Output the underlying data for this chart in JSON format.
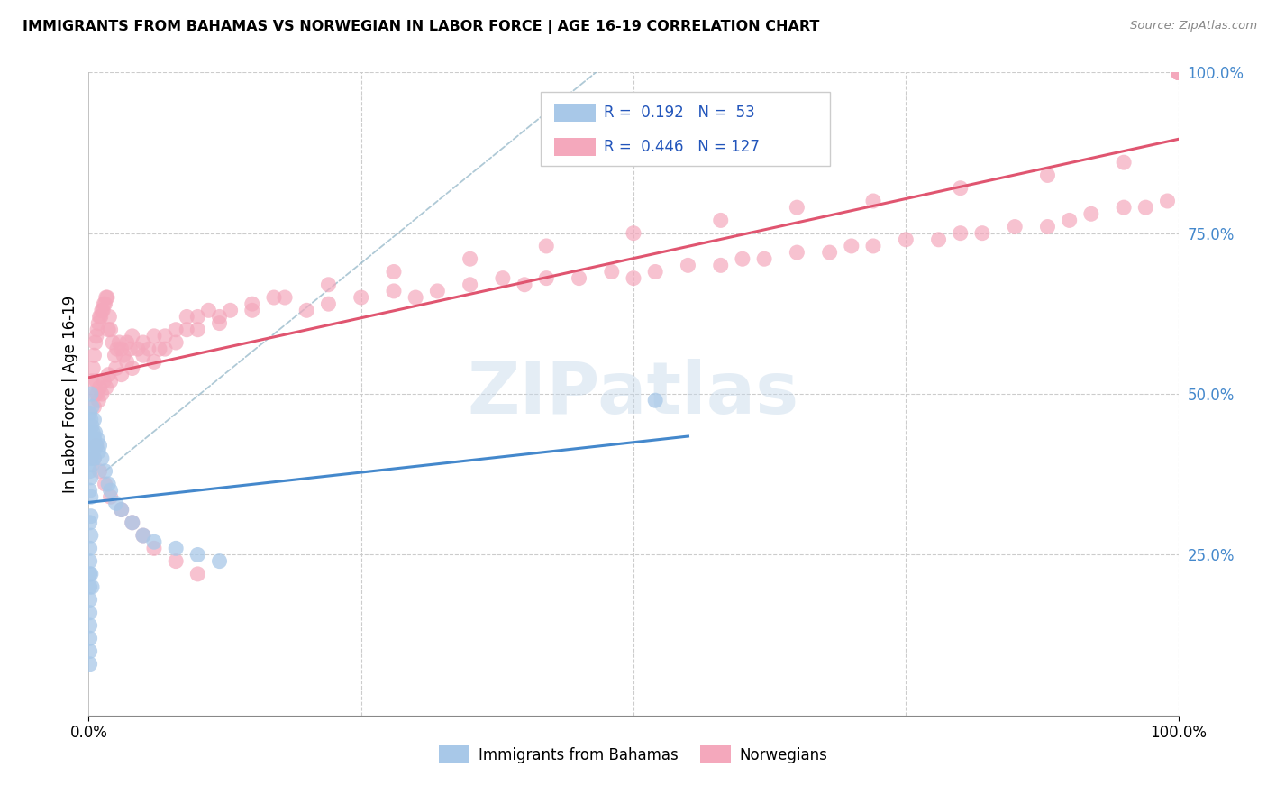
{
  "title": "IMMIGRANTS FROM BAHAMAS VS NORWEGIAN IN LABOR FORCE | AGE 16-19 CORRELATION CHART",
  "source": "Source: ZipAtlas.com",
  "ylabel": "In Labor Force | Age 16-19",
  "xlim": [
    0.0,
    1.0
  ],
  "ylim": [
    0.0,
    1.0
  ],
  "color_bahamas": "#a8c8e8",
  "color_norwegian": "#f4a8bc",
  "color_line_bahamas": "#4488cc",
  "color_line_norwegian": "#e05570",
  "color_dashed": "#aabbcc",
  "color_right_ticks": "#4488cc",
  "grid_color": "#cccccc",
  "bahamas_x": [
    0.001,
    0.001,
    0.001,
    0.001,
    0.001,
    0.002,
    0.002,
    0.002,
    0.002,
    0.002,
    0.002,
    0.002,
    0.002,
    0.003,
    0.003,
    0.003,
    0.003,
    0.004,
    0.004,
    0.005,
    0.005,
    0.005,
    0.006,
    0.007,
    0.008,
    0.009,
    0.01,
    0.012,
    0.015,
    0.018,
    0.02,
    0.025,
    0.03,
    0.04,
    0.05,
    0.06,
    0.08,
    0.1,
    0.12,
    0.001,
    0.001,
    0.001,
    0.001,
    0.001,
    0.001,
    0.001,
    0.001,
    0.001,
    0.001,
    0.001,
    0.002,
    0.003,
    0.52
  ],
  "bahamas_y": [
    0.47,
    0.44,
    0.41,
    0.38,
    0.35,
    0.5,
    0.46,
    0.43,
    0.4,
    0.37,
    0.34,
    0.31,
    0.28,
    0.48,
    0.45,
    0.42,
    0.39,
    0.44,
    0.41,
    0.46,
    0.43,
    0.4,
    0.44,
    0.42,
    0.43,
    0.41,
    0.42,
    0.4,
    0.38,
    0.36,
    0.35,
    0.33,
    0.32,
    0.3,
    0.28,
    0.27,
    0.26,
    0.25,
    0.24,
    0.08,
    0.1,
    0.12,
    0.14,
    0.16,
    0.18,
    0.2,
    0.22,
    0.24,
    0.26,
    0.3,
    0.22,
    0.2,
    0.49
  ],
  "norwegian_x": [
    0.003,
    0.004,
    0.005,
    0.006,
    0.007,
    0.008,
    0.009,
    0.01,
    0.011,
    0.012,
    0.013,
    0.014,
    0.015,
    0.016,
    0.017,
    0.018,
    0.019,
    0.02,
    0.022,
    0.024,
    0.026,
    0.028,
    0.03,
    0.032,
    0.035,
    0.038,
    0.04,
    0.045,
    0.05,
    0.055,
    0.06,
    0.065,
    0.07,
    0.08,
    0.09,
    0.1,
    0.11,
    0.12,
    0.13,
    0.15,
    0.17,
    0.2,
    0.22,
    0.25,
    0.28,
    0.3,
    0.32,
    0.35,
    0.38,
    0.4,
    0.42,
    0.45,
    0.48,
    0.5,
    0.52,
    0.55,
    0.58,
    0.6,
    0.62,
    0.65,
    0.68,
    0.7,
    0.72,
    0.75,
    0.78,
    0.8,
    0.82,
    0.85,
    0.88,
    0.9,
    0.92,
    0.95,
    0.97,
    0.99,
    1.0,
    1.0,
    1.0,
    1.0,
    1.0,
    1.0,
    1.0,
    1.0,
    1.0,
    0.005,
    0.006,
    0.007,
    0.008,
    0.009,
    0.01,
    0.012,
    0.014,
    0.016,
    0.018,
    0.02,
    0.025,
    0.03,
    0.035,
    0.04,
    0.05,
    0.06,
    0.07,
    0.08,
    0.09,
    0.1,
    0.12,
    0.15,
    0.18,
    0.22,
    0.28,
    0.35,
    0.42,
    0.5,
    0.58,
    0.65,
    0.72,
    0.8,
    0.88,
    0.95,
    0.005,
    0.007,
    0.01,
    0.015,
    0.02,
    0.03,
    0.04,
    0.05,
    0.06,
    0.08,
    0.1
  ],
  "norwegian_y": [
    0.52,
    0.54,
    0.56,
    0.58,
    0.59,
    0.6,
    0.61,
    0.62,
    0.62,
    0.63,
    0.63,
    0.64,
    0.64,
    0.65,
    0.65,
    0.6,
    0.62,
    0.6,
    0.58,
    0.56,
    0.57,
    0.58,
    0.57,
    0.56,
    0.58,
    0.57,
    0.59,
    0.57,
    0.58,
    0.57,
    0.59,
    0.57,
    0.59,
    0.6,
    0.62,
    0.62,
    0.63,
    0.62,
    0.63,
    0.64,
    0.65,
    0.63,
    0.64,
    0.65,
    0.66,
    0.65,
    0.66,
    0.67,
    0.68,
    0.67,
    0.68,
    0.68,
    0.69,
    0.68,
    0.69,
    0.7,
    0.7,
    0.71,
    0.71,
    0.72,
    0.72,
    0.73,
    0.73,
    0.74,
    0.74,
    0.75,
    0.75,
    0.76,
    0.76,
    0.77,
    0.78,
    0.79,
    0.79,
    0.8,
    1.0,
    1.0,
    1.0,
    1.0,
    1.0,
    1.0,
    1.0,
    1.0,
    1.0,
    0.48,
    0.5,
    0.52,
    0.5,
    0.49,
    0.51,
    0.5,
    0.52,
    0.51,
    0.53,
    0.52,
    0.54,
    0.53,
    0.55,
    0.54,
    0.56,
    0.55,
    0.57,
    0.58,
    0.6,
    0.6,
    0.61,
    0.63,
    0.65,
    0.67,
    0.69,
    0.71,
    0.73,
    0.75,
    0.77,
    0.79,
    0.8,
    0.82,
    0.84,
    0.86,
    0.4,
    0.42,
    0.38,
    0.36,
    0.34,
    0.32,
    0.3,
    0.28,
    0.26,
    0.24,
    0.22
  ]
}
